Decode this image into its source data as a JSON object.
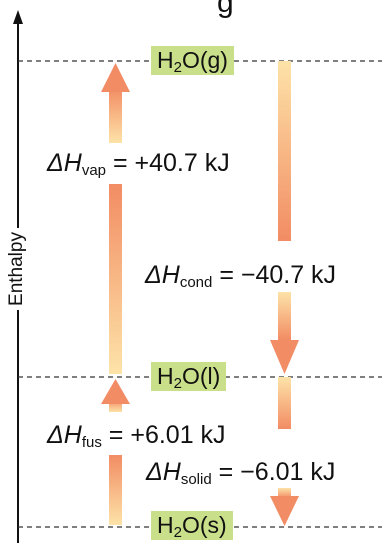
{
  "heading_fragment": "g",
  "axis": {
    "label": "Enthalpy"
  },
  "levels": [
    {
      "id": "gas",
      "formula_base": "H",
      "formula_sub": "2",
      "formula_tail": "O(g)"
    },
    {
      "id": "liquid",
      "formula_base": "H",
      "formula_sub": "2",
      "formula_tail": "O(l)"
    },
    {
      "id": "solid",
      "formula_base": "H",
      "formula_sub": "2",
      "formula_tail": "O(s)"
    }
  ],
  "transitions": [
    {
      "id": "vap",
      "delta": "ΔH",
      "sub": "vap",
      "value": "= +40.7 kJ",
      "direction": "up"
    },
    {
      "id": "cond",
      "delta": "ΔH",
      "sub": "cond",
      "value": "= −40.7 kJ",
      "direction": "down"
    },
    {
      "id": "fus",
      "delta": "ΔH",
      "sub": "fus",
      "value": "= +6.01 kJ",
      "direction": "up"
    },
    {
      "id": "solid",
      "delta": "ΔH",
      "sub": "solid",
      "value": "= −6.01 kJ",
      "direction": "down"
    }
  ],
  "colors": {
    "arrow_head": "#f28c64",
    "arrow_fade": "#fde3a8",
    "label_bg": "#c9df8a",
    "line": "#333333"
  }
}
